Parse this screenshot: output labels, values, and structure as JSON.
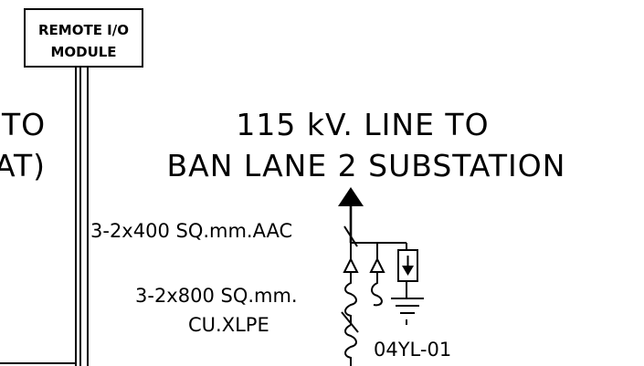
{
  "module": {
    "line1": "REMOTE I/O",
    "line2": "MODULE"
  },
  "left_fragments": {
    "line1": "TO",
    "line2": "AT)"
  },
  "title": {
    "line1": "115  kV.  LINE  TO",
    "line2": "BAN  LANE  2  SUBSTATION"
  },
  "conductor_aac": "3-2x400  SQ.mm.AAC",
  "cable_xlpe": {
    "line1": "3-2x800  SQ.mm.",
    "line2": "CU.XLPE"
  },
  "equipment_tag": "04YL-01",
  "colors": {
    "ink": "#000000",
    "paper": "#ffffff"
  },
  "icons": [
    "arrow-up-icon",
    "surge-arrester-icon",
    "ground-icon",
    "cable-termination-icon",
    "potential-transformer-icon"
  ]
}
